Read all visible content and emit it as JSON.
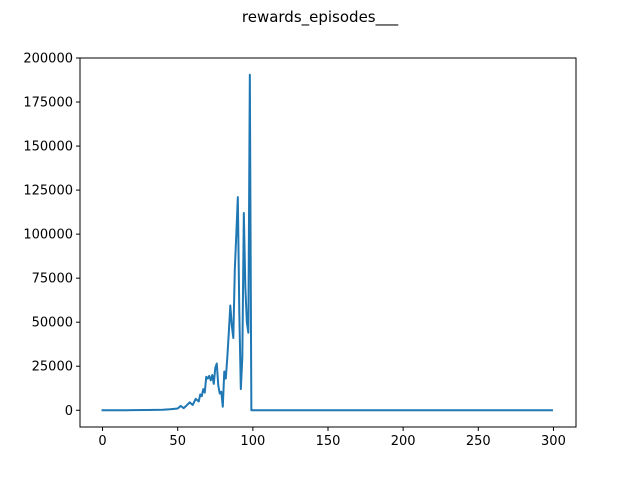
{
  "chart_data": {
    "type": "line",
    "title": "rewards_episodes___",
    "xlabel": "",
    "ylabel": "",
    "xlim": [
      -15,
      315
    ],
    "ylim": [
      -9500,
      200000
    ],
    "grid": false,
    "legend": "none",
    "line_color": "#1f77b4",
    "xticks": [
      0,
      50,
      100,
      150,
      200,
      250,
      300
    ],
    "yticks": [
      0,
      25000,
      50000,
      75000,
      100000,
      125000,
      150000,
      175000,
      200000
    ],
    "series": [
      {
        "x": [
          0,
          10,
          20,
          30,
          40,
          45,
          50,
          52,
          54,
          56,
          58,
          60,
          62,
          64,
          65,
          66,
          67,
          68,
          69,
          70,
          71,
          72,
          73,
          74,
          75,
          76,
          77,
          78,
          79,
          80,
          81,
          82,
          83,
          84,
          85,
          86,
          87,
          88,
          89,
          90,
          91,
          92,
          93,
          94,
          95,
          96,
          97,
          98,
          99,
          100,
          150,
          200,
          250,
          299
        ],
        "y": [
          0,
          0,
          50,
          150,
          300,
          600,
          1000,
          2500,
          1200,
          2800,
          4500,
          3000,
          6500,
          5000,
          9000,
          8000,
          12000,
          10000,
          19000,
          18000,
          19500,
          17000,
          20000,
          15000,
          24000,
          26500,
          14000,
          9500,
          10500,
          2000,
          22000,
          18000,
          30000,
          44000,
          59500,
          48000,
          41000,
          80000,
          100000,
          121000,
          55000,
          12000,
          30000,
          112000,
          70000,
          50000,
          44000,
          190500,
          0,
          0,
          0,
          0,
          0,
          0
        ]
      }
    ]
  }
}
